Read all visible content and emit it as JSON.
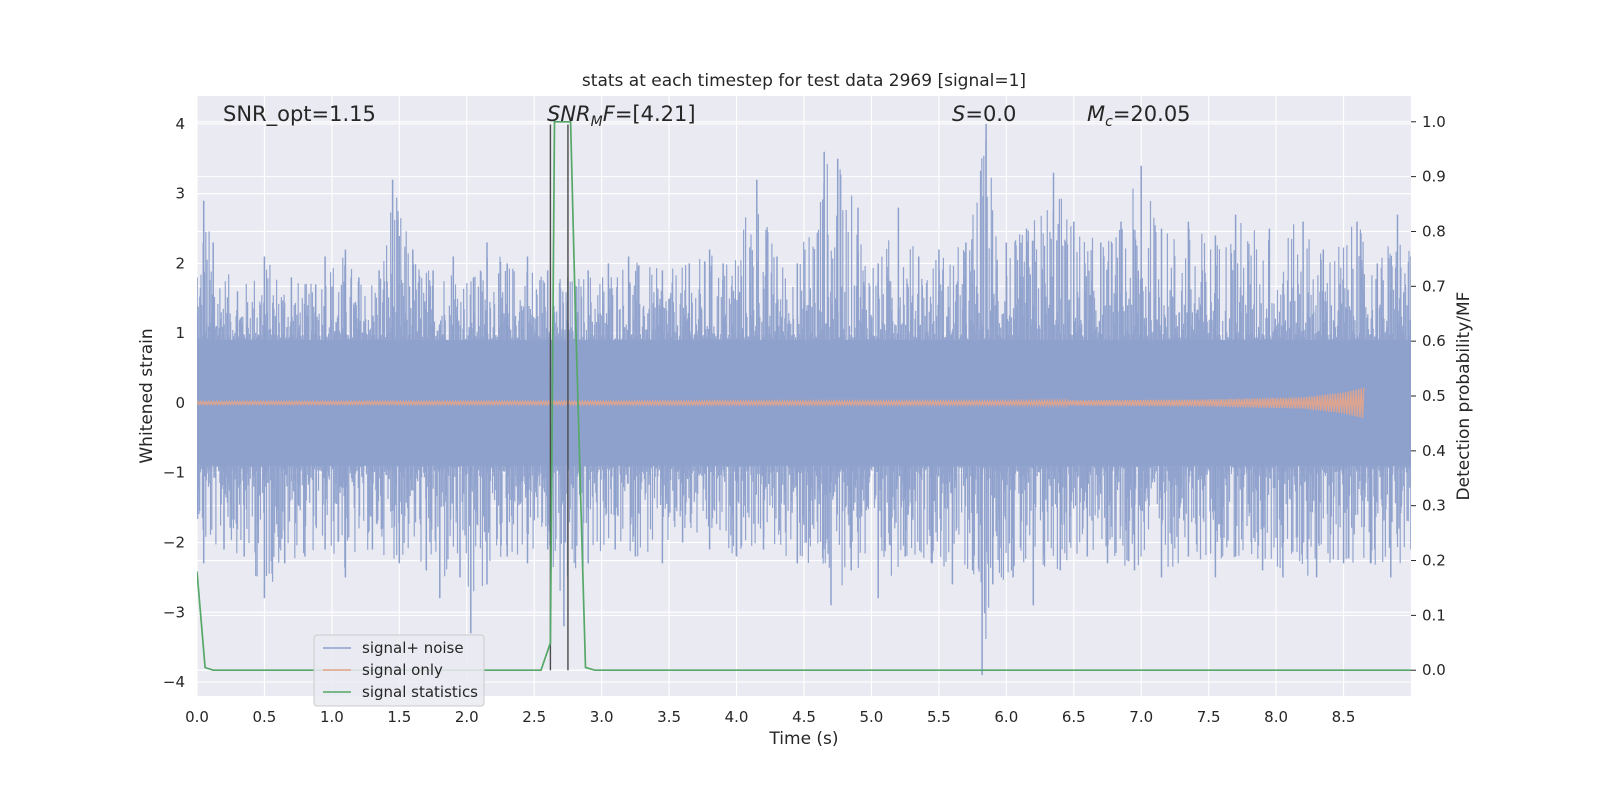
{
  "chart_data": {
    "type": "line",
    "title": "stats at each timestep for test data 2969 [signal=1]",
    "xlabel": "Time (s)",
    "ylabel": "Whitened strain",
    "y2label": "Detection probability/MF",
    "xlim": [
      0.0,
      9.0
    ],
    "ylim": [
      -4.2,
      4.4
    ],
    "y2lim": [
      -0.047,
      1.047
    ],
    "x_ticks": [
      "0.0",
      "0.5",
      "1.0",
      "1.5",
      "2.0",
      "2.5",
      "3.0",
      "3.5",
      "4.0",
      "4.5",
      "5.0",
      "5.5",
      "6.0",
      "6.5",
      "7.0",
      "7.5",
      "8.0",
      "8.5"
    ],
    "y_ticks": [
      "4",
      "3",
      "2",
      "1",
      "0",
      "−1",
      "−2",
      "−3",
      "−4"
    ],
    "y2_ticks": [
      "1.0",
      "0.9",
      "0.8",
      "0.7",
      "0.6",
      "0.5",
      "0.4",
      "0.3",
      "0.2",
      "0.1",
      "0.0"
    ],
    "grid": true,
    "legend_placement": "lower-left",
    "annotations": {
      "snr_opt": "SNR_opt=1.15",
      "snr_mf": "=[4.21]",
      "s_value": "=0.0",
      "mc_value": "=20.05"
    },
    "vertical_markers": [
      2.62,
      2.75
    ],
    "series": [
      {
        "name": "signal+ noise",
        "color": "#8da0cb",
        "style": "dense-noise",
        "x_range": [
          0.0,
          9.0
        ],
        "upper_envelope": [
          [
            0.0,
            1.8
          ],
          [
            0.05,
            2.9
          ],
          [
            0.12,
            2.3
          ],
          [
            0.3,
            1.6
          ],
          [
            0.5,
            2.1
          ],
          [
            0.7,
            1.8
          ],
          [
            0.88,
            1.7
          ],
          [
            0.95,
            2.1
          ],
          [
            1.1,
            2.2
          ],
          [
            1.2,
            1.8
          ],
          [
            1.35,
            1.9
          ],
          [
            1.45,
            3.2
          ],
          [
            1.6,
            2.2
          ],
          [
            1.75,
            1.9
          ],
          [
            1.9,
            2.1
          ],
          [
            2.05,
            1.8
          ],
          [
            2.15,
            2.3
          ],
          [
            2.3,
            2.0
          ],
          [
            2.45,
            2.1
          ],
          [
            2.6,
            1.9
          ],
          [
            2.75,
            1.8
          ],
          [
            2.9,
            1.9
          ],
          [
            3.05,
            2.0
          ],
          [
            3.2,
            2.1
          ],
          [
            3.45,
            1.9
          ],
          [
            3.65,
            2.0
          ],
          [
            3.8,
            2.2
          ],
          [
            3.9,
            2.0
          ],
          [
            4.15,
            3.2
          ],
          [
            4.3,
            2.1
          ],
          [
            4.45,
            2.0
          ],
          [
            4.65,
            3.6
          ],
          [
            4.75,
            3.5
          ],
          [
            4.9,
            2.8
          ],
          [
            5.05,
            2.0
          ],
          [
            5.2,
            2.8
          ],
          [
            5.35,
            2.1
          ],
          [
            5.5,
            2.2
          ],
          [
            5.7,
            2.3
          ],
          [
            5.85,
            4.0
          ],
          [
            6.0,
            2.3
          ],
          [
            6.15,
            2.5
          ],
          [
            6.35,
            3.3
          ],
          [
            6.5,
            2.6
          ],
          [
            6.7,
            2.3
          ],
          [
            6.85,
            2.6
          ],
          [
            7.0,
            3.4
          ],
          [
            7.15,
            2.5
          ],
          [
            7.35,
            2.6
          ],
          [
            7.55,
            2.4
          ],
          [
            7.7,
            2.7
          ],
          [
            7.95,
            2.5
          ],
          [
            8.2,
            2.6
          ],
          [
            8.35,
            2.2
          ],
          [
            8.6,
            2.6
          ],
          [
            8.75,
            2.0
          ],
          [
            8.9,
            2.7
          ],
          [
            9.0,
            2.1
          ]
        ],
        "lower_envelope": [
          [
            0.0,
            -1.6
          ],
          [
            0.05,
            -2.3
          ],
          [
            0.2,
            -2.1
          ],
          [
            0.35,
            -2.2
          ],
          [
            0.5,
            -2.8
          ],
          [
            0.65,
            -2.3
          ],
          [
            0.8,
            -2.2
          ],
          [
            0.95,
            -2.1
          ],
          [
            1.1,
            -2.5
          ],
          [
            1.3,
            -2.1
          ],
          [
            1.5,
            -2.3
          ],
          [
            1.7,
            -2.4
          ],
          [
            1.8,
            -2.8
          ],
          [
            1.95,
            -2.5
          ],
          [
            2.03,
            -3.3
          ],
          [
            2.15,
            -2.6
          ],
          [
            2.3,
            -2.2
          ],
          [
            2.45,
            -2.3
          ],
          [
            2.6,
            -2.1
          ],
          [
            2.72,
            -3.2
          ],
          [
            2.9,
            -2.3
          ],
          [
            3.1,
            -2.1
          ],
          [
            3.25,
            -2.2
          ],
          [
            3.45,
            -2.3
          ],
          [
            3.6,
            -2.0
          ],
          [
            3.8,
            -2.1
          ],
          [
            4.0,
            -2.2
          ],
          [
            4.2,
            -2.1
          ],
          [
            4.45,
            -2.3
          ],
          [
            4.7,
            -2.9
          ],
          [
            4.85,
            -2.4
          ],
          [
            5.05,
            -2.8
          ],
          [
            5.25,
            -2.2
          ],
          [
            5.45,
            -2.3
          ],
          [
            5.6,
            -2.6
          ],
          [
            5.75,
            -2.4
          ],
          [
            5.82,
            -3.9
          ],
          [
            5.9,
            -2.6
          ],
          [
            6.05,
            -2.5
          ],
          [
            6.2,
            -2.9
          ],
          [
            6.4,
            -2.4
          ],
          [
            6.6,
            -2.2
          ],
          [
            6.75,
            -2.3
          ],
          [
            6.95,
            -2.4
          ],
          [
            7.15,
            -2.5
          ],
          [
            7.35,
            -2.2
          ],
          [
            7.55,
            -2.5
          ],
          [
            7.7,
            -2.2
          ],
          [
            7.9,
            -2.4
          ],
          [
            8.05,
            -2.5
          ],
          [
            8.3,
            -2.5
          ],
          [
            8.5,
            -2.3
          ],
          [
            8.7,
            -2.3
          ],
          [
            8.85,
            -2.5
          ],
          [
            9.0,
            -2.1
          ]
        ]
      },
      {
        "name": "signal only",
        "color": "#e5a48a",
        "style": "chirp",
        "x": [
          0.0,
          6.0,
          7.5,
          8.2,
          8.5,
          8.65
        ],
        "amplitude": [
          0.02,
          0.03,
          0.05,
          0.08,
          0.15,
          0.22
        ]
      },
      {
        "name": "signal statistics",
        "color": "#55a868",
        "axis": "right",
        "x": [
          0.0,
          0.06,
          0.12,
          0.2,
          2.55,
          2.62,
          2.65,
          2.72,
          2.77,
          2.8,
          2.88,
          2.95,
          3.0,
          9.0
        ],
        "y": [
          0.18,
          0.005,
          0.0,
          0.0,
          0.0,
          0.05,
          1.0,
          1.0,
          1.0,
          0.7,
          0.005,
          0.0,
          0.0,
          0.0
        ]
      }
    ]
  }
}
